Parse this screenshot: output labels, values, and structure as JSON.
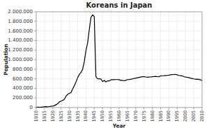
{
  "chart_data": {
    "type": "line",
    "title": "Koreans in Japan",
    "xlabel": "Year",
    "ylabel": "Population",
    "x": [
      1910,
      1911,
      1912,
      1913,
      1914,
      1915,
      1916,
      1917,
      1918,
      1919,
      1920,
      1921,
      1922,
      1923,
      1924,
      1925,
      1926,
      1927,
      1928,
      1929,
      1930,
      1931,
      1932,
      1933,
      1934,
      1935,
      1936,
      1937,
      1938,
      1939,
      1940,
      1941,
      1942,
      1943,
      1944,
      1945,
      1946,
      1947,
      1948,
      1949,
      1950,
      1951,
      1952,
      1953,
      1954,
      1955,
      1956,
      1957,
      1958,
      1959,
      1960,
      1961,
      1962,
      1963,
      1964,
      1965,
      1966,
      1967,
      1968,
      1969,
      1970,
      1971,
      1972,
      1973,
      1974,
      1975,
      1976,
      1977,
      1978,
      1979,
      1980,
      1981,
      1982,
      1983,
      1984,
      1985,
      1986,
      1987,
      1988,
      1989,
      1990,
      1991,
      1992,
      1993,
      1994,
      1995,
      1996,
      1997,
      1998,
      1999,
      2000,
      2001,
      2002,
      2003,
      2004,
      2005,
      2006,
      2007,
      2008,
      2009,
      2010
    ],
    "values": [
      2600,
      4000,
      6000,
      8000,
      12000,
      17000,
      21000,
      14500,
      22000,
      26000,
      30000,
      38000,
      59700,
      80000,
      118000,
      133000,
      148000,
      175000,
      238000,
      275000,
      298000,
      311000,
      390000,
      456000,
      537000,
      625000,
      690000,
      735000,
      800000,
      961000,
      1190000,
      1350000,
      1625000,
      1882000,
      1936000,
      1900000,
      647000,
      598000,
      601000,
      597000,
      544000,
      565000,
      535000,
      556000,
      556000,
      577000,
      581000,
      581000,
      583000,
      583000,
      581000,
      567000,
      568000,
      558000,
      567000,
      583000,
      584000,
      588000,
      598000,
      607000,
      614000,
      622000,
      629000,
      636000,
      643000,
      647000,
      638000,
      631000,
      635000,
      638000,
      643000,
      647000,
      650000,
      645000,
      643000,
      660000,
      663000,
      665000,
      668000,
      671000,
      676000,
      682000,
      688000,
      689000,
      692000,
      682000,
      670000,
      665000,
      660000,
      645000,
      635000,
      632000,
      625000,
      614000,
      607000,
      598000,
      590000,
      593000,
      589000,
      578000,
      565000
    ],
    "color": "#000000",
    "xlim": [
      1910,
      2010
    ],
    "xticks": [
      1910,
      1915,
      1920,
      1925,
      1930,
      1935,
      1940,
      1945,
      1950,
      1955,
      1960,
      1965,
      1970,
      1975,
      1980,
      1985,
      1990,
      1995,
      2000,
      2005,
      2010
    ],
    "ylim": [
      0,
      2000000
    ],
    "yticks": [
      0,
      {
        "value": 200000,
        "label": "200.000"
      },
      {
        "value": 400000,
        "label": "400.000"
      },
      {
        "value": 600000,
        "label": "600.000"
      },
      {
        "value": 800000,
        "label": "800.000"
      },
      {
        "value": 1000000,
        "label": "1.000.000"
      },
      {
        "value": 1200000,
        "label": "1.200.000"
      },
      {
        "value": 1400000,
        "label": "1.400.000"
      },
      {
        "value": 1600000,
        "label": "1.600.000"
      },
      {
        "value": 1800000,
        "label": "1.800.000"
      },
      {
        "value": 2000000,
        "label": "2.000.000"
      }
    ],
    "grid": true
  }
}
